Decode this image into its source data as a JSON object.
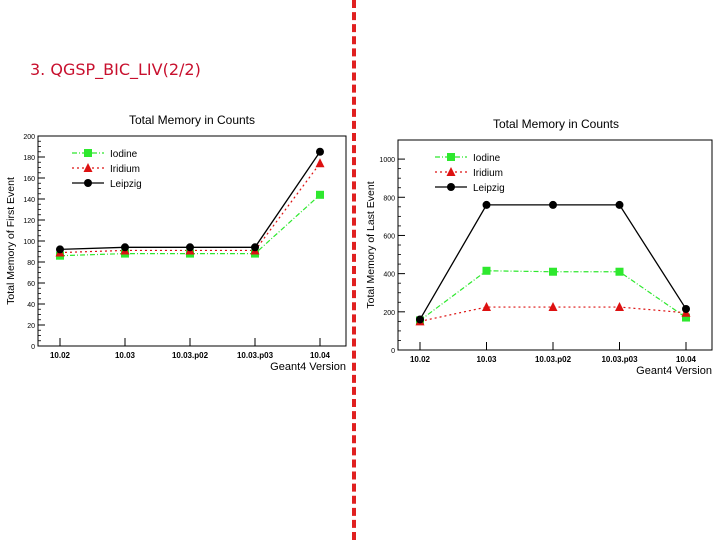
{
  "slide": {
    "title": "3. QGSP_BIC_LIV(2/2)"
  },
  "colors": {
    "title": "#c8102e",
    "divider": "#e02020",
    "Iodine": "#2ee82e",
    "Iridium": "#dd1111",
    "Leipzig": "#000000"
  },
  "chart_data": [
    {
      "type": "line",
      "title": "Total Memory in Counts",
      "xlabel": "Geant4 Version",
      "ylabel": "Total Memory of First Event",
      "categories": [
        "10.02",
        "10.03",
        "10.03.p02",
        "10.03.p03",
        "10.04"
      ],
      "ylim": [
        0,
        200
      ],
      "yticks": [
        0,
        20,
        40,
        60,
        80,
        100,
        120,
        140,
        160,
        180,
        200
      ],
      "legend_position": "top-left",
      "grid": false,
      "series": [
        {
          "name": "Iodine",
          "marker": "square",
          "line": "dash-dot",
          "values": [
            86,
            88,
            88,
            88,
            144
          ]
        },
        {
          "name": "Iridium",
          "marker": "triangle",
          "line": "dotted",
          "values": [
            89,
            91,
            91,
            91,
            174
          ]
        },
        {
          "name": "Leipzig",
          "marker": "circle",
          "line": "solid",
          "values": [
            92,
            94,
            94,
            94,
            185
          ]
        }
      ]
    },
    {
      "type": "line",
      "title": "Total Memory in Counts",
      "xlabel": "Geant4 Version",
      "ylabel": "Total Memory of Last Event",
      "categories": [
        "10.02",
        "10.03",
        "10.03.p02",
        "10.03.p03",
        "10.04"
      ],
      "ylim": [
        0,
        1100
      ],
      "yticks": [
        0,
        200,
        400,
        600,
        800,
        1000
      ],
      "legend_position": "top-left",
      "grid": false,
      "series": [
        {
          "name": "Iodine",
          "marker": "square",
          "line": "dash-dot",
          "values": [
            155,
            415,
            410,
            410,
            170
          ]
        },
        {
          "name": "Iridium",
          "marker": "triangle",
          "line": "dotted",
          "values": [
            150,
            225,
            225,
            225,
            195
          ]
        },
        {
          "name": "Leipzig",
          "marker": "circle",
          "line": "solid",
          "values": [
            160,
            760,
            760,
            760,
            215
          ]
        }
      ]
    }
  ]
}
